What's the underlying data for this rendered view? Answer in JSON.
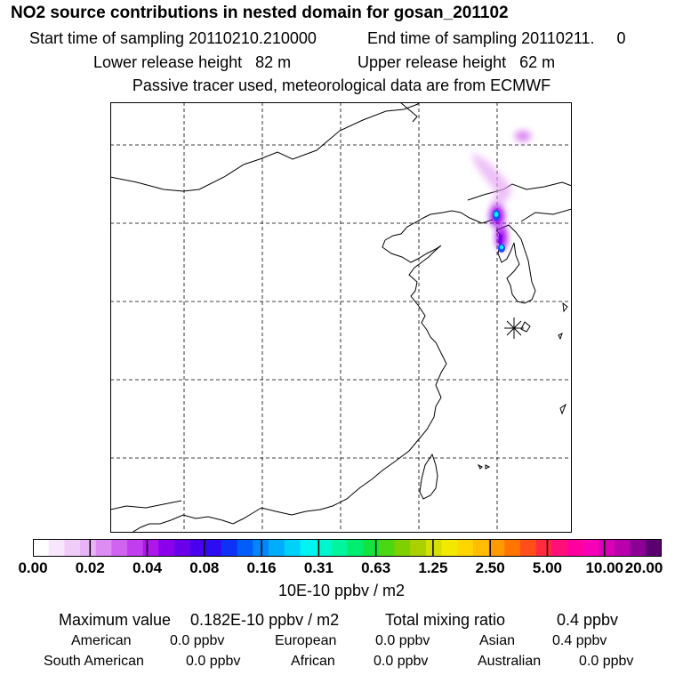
{
  "header": {
    "title": "NO2 source contributions in nested domain for gosan_201102",
    "start_label": "Start time of sampling",
    "start_value": "20110210.210000",
    "end_label": "End time of sampling",
    "end_value": "20110211.",
    "end_value2": "0",
    "lower_label": "Lower release height",
    "lower_value": "82 m",
    "upper_label": "Upper release height",
    "upper_value": "62 m",
    "note": "Passive tracer used, meteorological data are from ECMWF"
  },
  "colorbar": {
    "colors": [
      "#ffffff",
      "#f8e6fc",
      "#f0cdf9",
      "#e8b4f6",
      "#dd8cf2",
      "#d063ef",
      "#c13eee",
      "#ad16ec",
      "#8a00ea",
      "#6a00ea",
      "#4a00ee",
      "#2d0cf2",
      "#0d32f5",
      "#005ef8",
      "#0087fb",
      "#00adfb",
      "#00d1f8",
      "#00f2f2",
      "#00f6cc",
      "#00f59e",
      "#00ee70",
      "#11e440",
      "#4ad812",
      "#7ed000",
      "#aad000",
      "#d4e000",
      "#f2e800",
      "#ffd600",
      "#ffbc00",
      "#ff9a00",
      "#ff7500",
      "#ff4e1a",
      "#ff2a3e",
      "#ff0f78",
      "#ff009e",
      "#f600b8",
      "#d800b4",
      "#b800ac",
      "#8c0096",
      "#5a0070"
    ],
    "tick_labels": [
      "0.00",
      "0.02",
      "0.04",
      "0.08",
      "0.16",
      "0.31",
      "0.63",
      "1.25",
      "2.50",
      "5.00",
      "10.00",
      "20.00"
    ],
    "units": "10E-10 ppbv / m2"
  },
  "summary": {
    "max_label": "Maximum value",
    "max_value": "0.182E-10 ppbv / m2",
    "total_label": "Total mixing ratio",
    "total_value": "0.4 ppbv",
    "regions": [
      {
        "name": "American",
        "value": "0.0 ppbv"
      },
      {
        "name": "European",
        "value": "0.0 ppbv"
      },
      {
        "name": "Asian",
        "value": "0.4 ppbv"
      },
      {
        "name": "South American",
        "value": "0.0 ppbv"
      },
      {
        "name": "African",
        "value": "0.0 ppbv"
      },
      {
        "name": "Australian",
        "value": "0.0 ppbv"
      }
    ]
  }
}
